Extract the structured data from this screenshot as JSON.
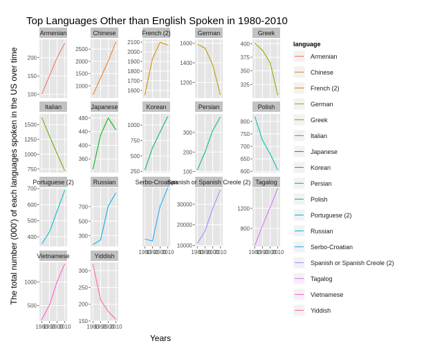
{
  "chart_data": {
    "type": "line",
    "title": "Top Languages Other than English Spoken in 1980-2010",
    "xlabel": "Years",
    "ylabel": "The total number (000') of each languages spoken in the US over time",
    "legend_title": "language",
    "legend_placement": "right",
    "facet_scales": "free_y",
    "x": [
      1980,
      1990,
      2000,
      2010
    ],
    "x_tick_labels": [
      "1980",
      "1990",
      "2000",
      "2010"
    ],
    "xlim": [
      1977,
      2013
    ],
    "panels": [
      {
        "name": "Armenian",
        "color": "#F8766D",
        "values": [
          100,
          150,
          200,
          240
        ],
        "ylim": [
          90,
          250
        ],
        "yticks": [
          100,
          150,
          200
        ]
      },
      {
        "name": "Chinese",
        "color": "#E9842C",
        "values": [
          630,
          1320,
          2020,
          2800
        ],
        "ylim": [
          500,
          2900
        ],
        "yticks": [
          1000,
          1500,
          2000,
          2500
        ]
      },
      {
        "name": "French (2)",
        "color": "#D69100",
        "values": [
          1550,
          1930,
          2100,
          2070
        ],
        "ylim": [
          1520,
          2130
        ],
        "yticks": [
          1600,
          1700,
          1800,
          1900,
          2000,
          2100
        ]
      },
      {
        "name": "German",
        "color": "#BC9D00",
        "values": [
          1590,
          1550,
          1380,
          1070
        ],
        "ylim": [
          1040,
          1640
        ],
        "yticks": [
          1200,
          1400,
          1600
        ]
      },
      {
        "name": "Greek",
        "color": "#9CA700",
        "values": [
          401,
          388,
          365,
          305
        ],
        "ylim": [
          300,
          408
        ],
        "yticks": [
          325,
          350,
          375,
          400
        ]
      },
      {
        "name": "Italian",
        "color": "#6FB000",
        "values": [
          1620,
          1310,
          1010,
          720
        ],
        "ylim": [
          690,
          1680
        ],
        "yticks": [
          750,
          1000,
          1250,
          1500
        ]
      },
      {
        "name": "Japanese",
        "color": "#00B813",
        "values": [
          330,
          430,
          480,
          445
        ],
        "ylim": [
          320,
          492
        ],
        "yticks": [
          360,
          400,
          440,
          480
        ]
      },
      {
        "name": "Korean",
        "color": "#00BD61",
        "values": [
          270,
          630,
          890,
          1140
        ],
        "ylim": [
          230,
          1180
        ],
        "yticks": [
          250,
          500,
          750,
          1000
        ]
      },
      {
        "name": "Persian",
        "color": "#00C08E",
        "values": [
          108,
          200,
          310,
          380
        ],
        "ylim": [
          95,
          395
        ],
        "yticks": [
          100,
          200,
          300
        ]
      },
      {
        "name": "Polish",
        "color": "#00C0B4",
        "values": [
          820,
          725,
          670,
          605
        ],
        "ylim": [
          595,
          830
        ],
        "yticks": [
          600,
          650,
          700,
          750,
          800
        ]
      },
      {
        "name": "Portuguese (2)",
        "color": "#00BDD4",
        "values": [
          355,
          430,
          560,
          690
        ],
        "ylim": [
          340,
          705
        ],
        "yticks": [
          400,
          500,
          600,
          700
        ]
      },
      {
        "name": "Russian",
        "color": "#00B5EE",
        "values": [
          175,
          240,
          710,
          890
        ],
        "ylim": [
          150,
          960
        ],
        "yticks": [
          300,
          500,
          700
        ]
      },
      {
        "name": "Serbo-Croatian",
        "color": "#2BA9FF",
        "values": [
          150,
          145,
          240,
          290
        ],
        "ylim": [
          130,
          290
        ],
        "yticks": []
      },
      {
        "name": "Spanish or Spanish Creole (2)",
        "color": "#A58AFF",
        "values": [
          11000,
          17000,
          28000,
          37000
        ],
        "ylim": [
          9500,
          38000
        ],
        "yticks": [
          10000,
          20000,
          30000
        ]
      },
      {
        "name": "Tagalog",
        "color": "#DF70F8",
        "values": [
          460,
          850,
          1220,
          1600
        ],
        "ylim": [
          440,
          1610
        ],
        "yticks": [
          800,
          1200
        ]
      },
      {
        "name": "Vietnamese",
        "color": "#FB61D7",
        "values": [
          200,
          510,
          1010,
          1390
        ],
        "ylim": [
          170,
          1420
        ],
        "yticks": [
          500,
          1000
        ]
      },
      {
        "name": "Yiddish",
        "color": "#FF66A8",
        "values": [
          320,
          213,
          178,
          155
        ],
        "ylim": [
          150,
          325
        ],
        "yticks": [
          150,
          200,
          250,
          300
        ]
      }
    ]
  }
}
